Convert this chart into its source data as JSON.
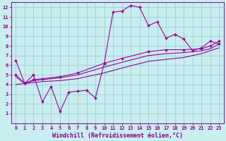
{
  "bg_color": "#c8eef0",
  "grid_color": "#a0ccd4",
  "line_color": "#990099",
  "marker_color": "#990099",
  "xlabel": "Windchill (Refroidissement éolien,°C)",
  "xlim": [
    -0.5,
    23.5
  ],
  "ylim": [
    0,
    12.5
  ],
  "xticks": [
    0,
    1,
    2,
    3,
    4,
    5,
    6,
    7,
    8,
    9,
    10,
    11,
    12,
    13,
    14,
    15,
    16,
    17,
    18,
    19,
    20,
    21,
    22,
    23
  ],
  "yticks": [
    1,
    2,
    3,
    4,
    5,
    6,
    7,
    8,
    9,
    10,
    11,
    12
  ],
  "curves": [
    {
      "points": [
        [
          0,
          6.5
        ],
        [
          1,
          4.1
        ],
        [
          2,
          5.0
        ],
        [
          3,
          2.2
        ],
        [
          4,
          3.8
        ],
        [
          5,
          1.2
        ],
        [
          6,
          3.2
        ],
        [
          7,
          3.3
        ],
        [
          8,
          3.4
        ],
        [
          9,
          2.6
        ],
        [
          10,
          6.2
        ],
        [
          11,
          11.5
        ],
        [
          12,
          11.6
        ],
        [
          13,
          12.2
        ],
        [
          14,
          12.0
        ],
        [
          15,
          10.1
        ],
        [
          16,
          10.5
        ],
        [
          17,
          8.8
        ],
        [
          18,
          9.2
        ],
        [
          19,
          8.7
        ],
        [
          20,
          7.5
        ],
        [
          21,
          7.8
        ],
        [
          22,
          8.5
        ],
        [
          23,
          8.2
        ]
      ],
      "has_markers": true
    },
    {
      "points": [
        [
          0,
          5.0
        ],
        [
          1,
          4.1
        ],
        [
          2,
          4.5
        ],
        [
          3,
          4.6
        ],
        [
          5,
          4.8
        ],
        [
          7,
          5.2
        ],
        [
          10,
          6.2
        ],
        [
          12,
          6.7
        ],
        [
          15,
          7.4
        ],
        [
          17,
          7.6
        ],
        [
          19,
          7.6
        ],
        [
          21,
          7.7
        ],
        [
          22,
          8.0
        ],
        [
          23,
          8.5
        ]
      ],
      "has_markers": true
    },
    {
      "points": [
        [
          0,
          4.8
        ],
        [
          1,
          4.1
        ],
        [
          2,
          4.4
        ],
        [
          3,
          4.5
        ],
        [
          5,
          4.7
        ],
        [
          7,
          5.0
        ],
        [
          10,
          5.8
        ],
        [
          12,
          6.3
        ],
        [
          15,
          7.0
        ],
        [
          17,
          7.2
        ],
        [
          19,
          7.3
        ],
        [
          21,
          7.5
        ],
        [
          22,
          7.7
        ],
        [
          23,
          8.2
        ]
      ],
      "has_markers": false
    },
    {
      "points": [
        [
          0,
          4.0
        ],
        [
          1,
          4.1
        ],
        [
          2,
          4.2
        ],
        [
          3,
          4.3
        ],
        [
          5,
          4.4
        ],
        [
          7,
          4.6
        ],
        [
          10,
          5.2
        ],
        [
          12,
          5.7
        ],
        [
          15,
          6.4
        ],
        [
          17,
          6.6
        ],
        [
          19,
          6.8
        ],
        [
          21,
          7.2
        ],
        [
          22,
          7.5
        ],
        [
          23,
          7.8
        ]
      ],
      "has_markers": false
    }
  ],
  "font_color": "#880088",
  "tick_fontsize": 5.0,
  "label_fontsize": 6.0
}
